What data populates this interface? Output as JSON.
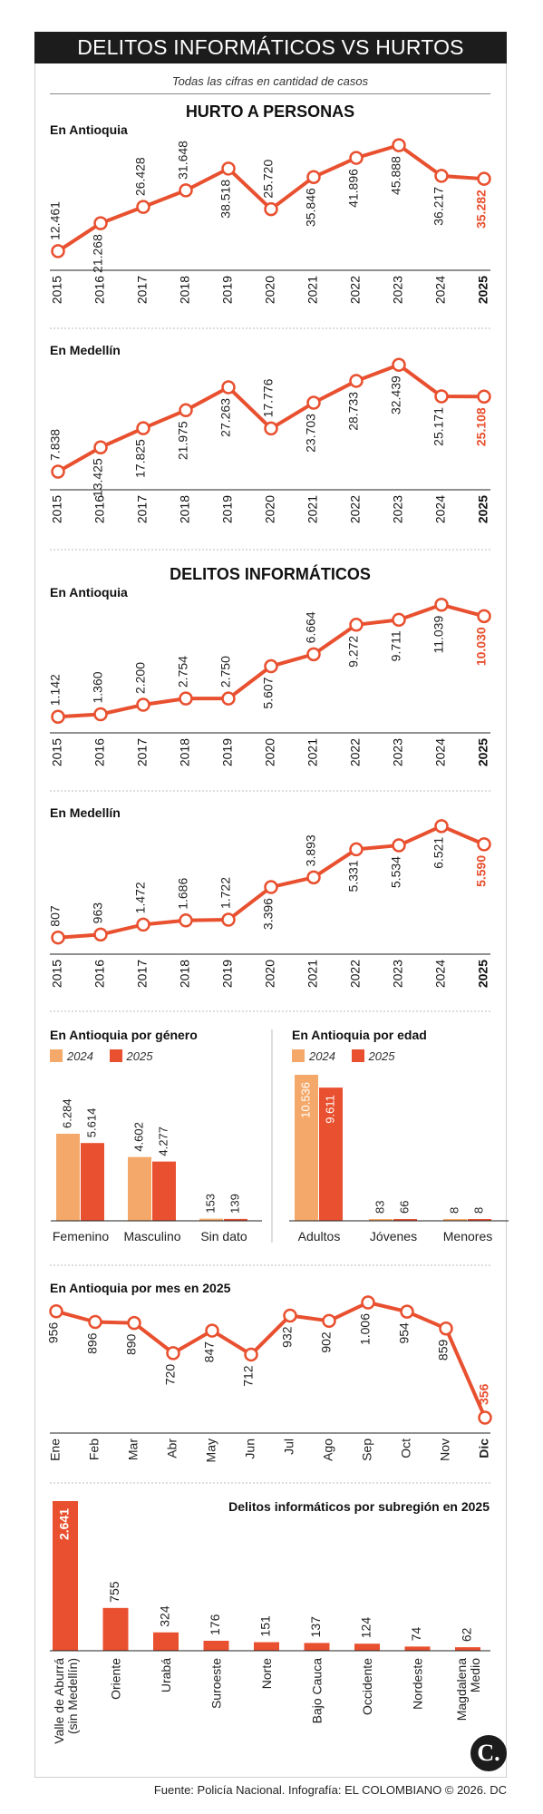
{
  "banner": "DELITOS INFORMÁTICOS VS HURTOS",
  "note": "Todas las cifras en cantidad de casos",
  "section_hurto": "HURTO A PERSONAS",
  "section_delitos": "DELITOS INFORMÁTICOS",
  "source": "Fuente: Policía Nacional. Infografía: EL COLOMBIANO © 2026. DC",
  "logo": "C.",
  "colors": {
    "accent": "#e8502f",
    "light": "#f4a96a",
    "text": "#222222"
  },
  "chart_data": [
    {
      "id": "hurto_antioquia",
      "type": "line",
      "title": "En Antioquia",
      "x": [
        "2015",
        "2016",
        "2017",
        "2018",
        "2019",
        "2020",
        "2021",
        "2022",
        "2023",
        "2024",
        "2025"
      ],
      "values": [
        12461,
        21268,
        26428,
        31648,
        38518,
        25720,
        35846,
        41896,
        45888,
        36217,
        35282
      ],
      "labels": [
        "12.461",
        "21.268",
        "26.428",
        "31.648",
        "38.518",
        "25.720",
        "35.846",
        "41.896",
        "45.888",
        "36.217",
        "35.282"
      ],
      "highlight_last": true
    },
    {
      "id": "hurto_medellin",
      "type": "line",
      "title": "En Medellín",
      "x": [
        "2015",
        "2016",
        "2017",
        "2018",
        "2019",
        "2020",
        "2021",
        "2022",
        "2023",
        "2024",
        "2025"
      ],
      "values": [
        7838,
        13425,
        17825,
        21975,
        27263,
        17776,
        23703,
        28733,
        32439,
        25171,
        25108
      ],
      "labels": [
        "7.838",
        "13.425",
        "17.825",
        "21.975",
        "27.263",
        "17.776",
        "23.703",
        "28.733",
        "32.439",
        "25.171",
        "25.108"
      ],
      "highlight_last": true
    },
    {
      "id": "delitos_antioquia",
      "type": "line",
      "title": "En Antioquia",
      "x": [
        "2015",
        "2016",
        "2017",
        "2018",
        "2019",
        "2020",
        "2021",
        "2022",
        "2023",
        "2024",
        "2025"
      ],
      "values": [
        1142,
        1360,
        2200,
        2754,
        2750,
        5607,
        6664,
        9272,
        9711,
        11039,
        10030
      ],
      "labels": [
        "1.142",
        "1.360",
        "2.200",
        "2.754",
        "2.750",
        "5.607",
        "6.664",
        "9.272",
        "9.711",
        "11.039",
        "10.030"
      ],
      "highlight_last": true
    },
    {
      "id": "delitos_medellin",
      "type": "line",
      "title": "En Medellín",
      "x": [
        "2015",
        "2016",
        "2017",
        "2018",
        "2019",
        "2020",
        "2021",
        "2022",
        "2023",
        "2024",
        "2025"
      ],
      "values": [
        807,
        963,
        1472,
        1686,
        1722,
        3396,
        3893,
        5331,
        5534,
        6521,
        5590
      ],
      "labels": [
        "807",
        "963",
        "1.472",
        "1.686",
        "1.722",
        "3.396",
        "3.893",
        "5.331",
        "5.534",
        "6.521",
        "5.590"
      ],
      "highlight_last": true
    },
    {
      "id": "genero",
      "type": "bar",
      "title": "En Antioquia por género",
      "categories": [
        "Femenino",
        "Masculino",
        "Sin dato"
      ],
      "series": [
        {
          "name": "2024",
          "values": [
            6284,
            4602,
            153
          ],
          "labels": [
            "6.284",
            "4.602",
            "153"
          ]
        },
        {
          "name": "2025",
          "values": [
            5614,
            4277,
            139
          ],
          "labels": [
            "5.614",
            "4.277",
            "139"
          ]
        }
      ]
    },
    {
      "id": "edad",
      "type": "bar",
      "title": "En Antioquia por edad",
      "categories": [
        "Adultos",
        "Jóvenes",
        "Menores"
      ],
      "series": [
        {
          "name": "2024",
          "values": [
            10536,
            83,
            8
          ],
          "labels": [
            "10.536",
            "83",
            "8"
          ]
        },
        {
          "name": "2025",
          "values": [
            9611,
            66,
            8
          ],
          "labels": [
            "9.611",
            "66",
            "8"
          ]
        }
      ]
    },
    {
      "id": "mes",
      "type": "line",
      "title": "En Antioquia por mes en 2025",
      "x": [
        "Ene",
        "Feb",
        "Mar",
        "Abr",
        "May",
        "Jun",
        "Jul",
        "Ago",
        "Sep",
        "Oct",
        "Nov",
        "Dic"
      ],
      "values": [
        956,
        896,
        890,
        720,
        847,
        712,
        932,
        902,
        1006,
        954,
        859,
        356
      ],
      "labels": [
        "956",
        "896",
        "890",
        "720",
        "847",
        "712",
        "932",
        "902",
        "1.006",
        "954",
        "859",
        "356"
      ],
      "highlight_last": true
    },
    {
      "id": "subregion",
      "type": "bar",
      "title": "Delitos informáticos por subregión en 2025",
      "categories": [
        "Valle de Aburrá (sin Medellín)",
        "Oriente",
        "Urabá",
        "Suroeste",
        "Norte",
        "Bajo Cauca",
        "Occidente",
        "Nordeste",
        "Magdalena Medio"
      ],
      "values": [
        2641,
        755,
        324,
        176,
        151,
        137,
        124,
        74,
        62
      ],
      "labels": [
        "2.641",
        "755",
        "324",
        "176",
        "151",
        "137",
        "124",
        "74",
        "62"
      ]
    }
  ]
}
